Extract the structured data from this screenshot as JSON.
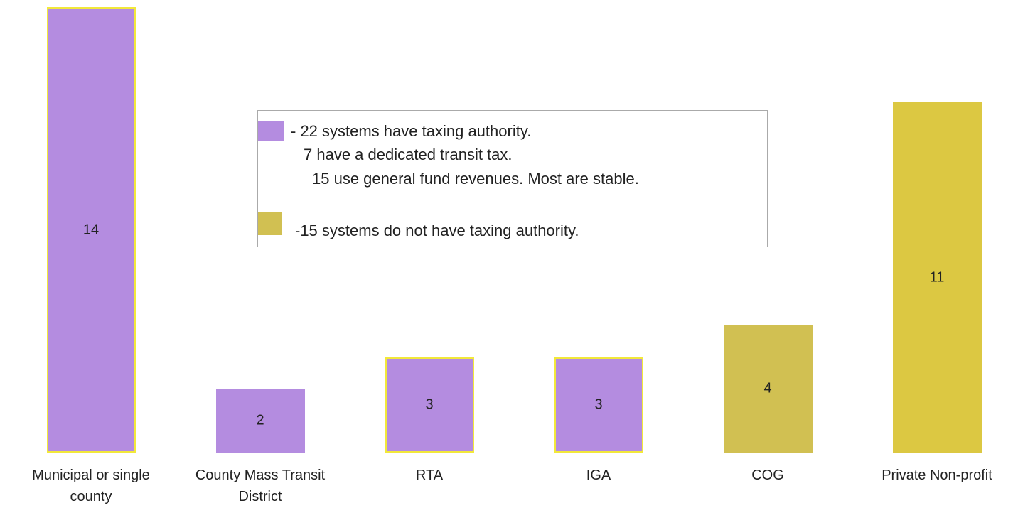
{
  "chart_data": {
    "type": "bar",
    "categories": [
      "Municipal or single county",
      "County Mass Transit District",
      "RTA",
      "IGA",
      "COG",
      "Private Non-profit"
    ],
    "values": [
      14,
      2,
      3,
      3,
      4,
      11
    ],
    "colors": [
      "#b48ce0",
      "#b48ce0",
      "#b48ce0",
      "#b48ce0",
      "#d1c052",
      "#dcc842"
    ],
    "edge_colors": [
      "#f2e83a",
      "#b48ce0",
      "#f2e83a",
      "#f2e83a",
      "#d1c052",
      "#dcc842"
    ],
    "ylim": [
      0,
      14
    ],
    "legend": [
      {
        "color": "#b48ce0",
        "lines": [
          "- 22 systems have taxing authority.",
          "7 have a dedicated transit tax.",
          "15 use general fund revenues. Most are stable."
        ]
      },
      {
        "color": "#d1c052",
        "lines": [
          "-15 systems do not have taxing authority."
        ]
      }
    ]
  }
}
